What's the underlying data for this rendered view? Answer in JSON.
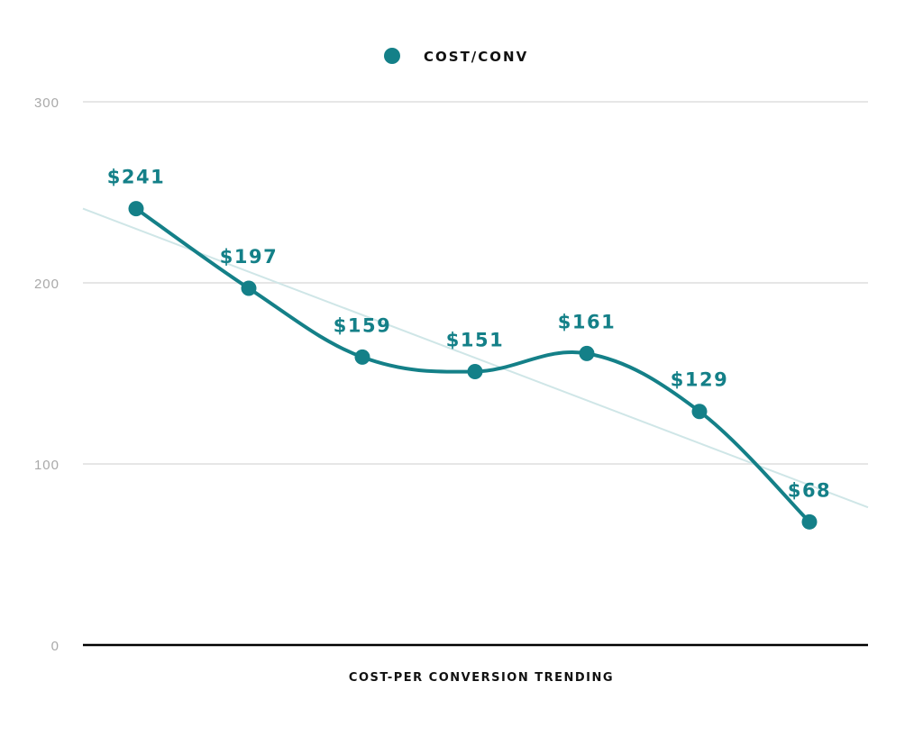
{
  "chart_data": {
    "type": "line",
    "title": "",
    "xlabel": "COST-PER CONVERSION TRENDING",
    "ylabel": "",
    "ylim": [
      0,
      300
    ],
    "yticks": [
      0,
      100,
      200,
      300
    ],
    "ytick_labels": [
      "0",
      "100",
      "200",
      "300"
    ],
    "grid": true,
    "legend_position": "top-center",
    "x": [
      1,
      2,
      3,
      4,
      5,
      6,
      7
    ],
    "series": [
      {
        "name": "COST/CONV",
        "color": "#148088",
        "values": [
          241,
          197,
          159,
          151,
          161,
          129,
          68
        ],
        "data_labels": [
          "$241",
          "$197",
          "$159",
          "$151",
          "$161",
          "$129",
          "$68"
        ]
      }
    ],
    "trendline": {
      "color": "#cfe6e7",
      "start": 241,
      "end": 76
    }
  }
}
